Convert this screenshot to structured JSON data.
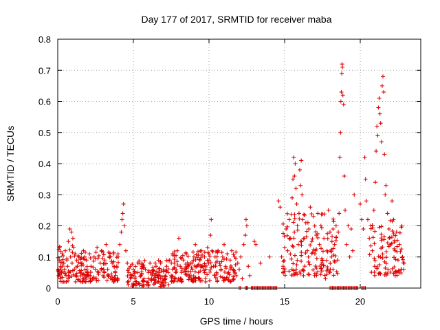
{
  "chart_data": {
    "type": "scatter",
    "title": "Day 177 of 2017, SRMTID for receiver maba",
    "xlabel": "GPS time / hours",
    "ylabel": "SRMTID / TECUs",
    "xlim": [
      0,
      24
    ],
    "ylim": [
      0,
      0.8
    ],
    "xticks": [
      "0",
      "5",
      "10",
      "15",
      "20"
    ],
    "yticks": [
      "0",
      "0.1",
      "0.2",
      "0.3",
      "0.4",
      "0.5",
      "0.6",
      "0.7",
      "0.8"
    ],
    "grid": true,
    "marker": "+",
    "color": "#e00000",
    "series": [
      {
        "points": [
          [
            0.0,
            0.06
          ],
          [
            0.05,
            0.04
          ],
          [
            0.1,
            0.09
          ],
          [
            0.15,
            0.03
          ],
          [
            0.2,
            0.07
          ],
          [
            0.25,
            0.05
          ],
          [
            0.3,
            0.11
          ],
          [
            0.35,
            0.02
          ],
          [
            0.4,
            0.08
          ],
          [
            0.45,
            0.06
          ],
          [
            0.5,
            0.12
          ],
          [
            0.55,
            0.04
          ],
          [
            0.6,
            0.09
          ],
          [
            0.65,
            0.07
          ],
          [
            0.7,
            0.15
          ],
          [
            0.75,
            0.05
          ],
          [
            0.8,
            0.19
          ],
          [
            0.85,
            0.1
          ],
          [
            0.9,
            0.18
          ],
          [
            0.95,
            0.08
          ],
          [
            1.0,
            0.16
          ],
          [
            1.05,
            0.13
          ],
          [
            1.1,
            0.06
          ],
          [
            1.15,
            0.11
          ],
          [
            1.2,
            0.04
          ],
          [
            1.25,
            0.09
          ],
          [
            1.3,
            0.07
          ],
          [
            1.4,
            0.1
          ],
          [
            1.5,
            0.05
          ],
          [
            1.6,
            0.08
          ],
          [
            1.7,
            0.12
          ],
          [
            1.8,
            0.06
          ],
          [
            1.9,
            0.09
          ],
          [
            2.0,
            0.04
          ],
          [
            2.1,
            0.11
          ],
          [
            2.2,
            0.07
          ],
          [
            2.3,
            0.03
          ],
          [
            2.4,
            0.1
          ],
          [
            2.5,
            0.06
          ],
          [
            2.6,
            0.13
          ],
          [
            2.7,
            0.05
          ],
          [
            2.8,
            0.08
          ],
          [
            2.9,
            0.12
          ],
          [
            3.0,
            0.04
          ],
          [
            3.1,
            0.09
          ],
          [
            3.2,
            0.14
          ],
          [
            3.3,
            0.06
          ],
          [
            3.4,
            0.1
          ],
          [
            3.5,
            0.03
          ],
          [
            3.6,
            0.08
          ],
          [
            3.7,
            0.11
          ],
          [
            3.8,
            0.05
          ],
          [
            3.9,
            0.07
          ],
          [
            4.0,
            0.1
          ],
          [
            4.1,
            0.14
          ],
          [
            4.2,
            0.18
          ],
          [
            4.25,
            0.22
          ],
          [
            4.3,
            0.24
          ],
          [
            4.35,
            0.27
          ],
          [
            4.4,
            0.2
          ],
          [
            4.5,
            0.12
          ],
          [
            4.6,
            0.08
          ],
          [
            4.7,
            0.05
          ],
          [
            4.8,
            0.07
          ],
          [
            4.9,
            0.04
          ],
          [
            5.0,
            0.06
          ],
          [
            5.1,
            0.03
          ],
          [
            5.2,
            0.02
          ],
          [
            5.3,
            0.05
          ],
          [
            5.4,
            0.01
          ],
          [
            5.5,
            0.04
          ],
          [
            5.6,
            0.07
          ],
          [
            5.7,
            0.03
          ],
          [
            5.8,
            0.06
          ],
          [
            5.9,
            0.02
          ],
          [
            6.0,
            0.05
          ],
          [
            6.1,
            0.08
          ],
          [
            6.2,
            0.03
          ],
          [
            6.3,
            0.06
          ],
          [
            6.4,
            0.04
          ],
          [
            6.5,
            0.07
          ],
          [
            6.6,
            0.02
          ],
          [
            6.7,
            0.05
          ],
          [
            6.8,
            0.08
          ],
          [
            6.9,
            0.03
          ],
          [
            7.0,
            0.06
          ],
          [
            7.1,
            0.04
          ],
          [
            7.2,
            0.07
          ],
          [
            7.3,
            0.05
          ],
          [
            7.4,
            0.09
          ],
          [
            7.5,
            0.04
          ],
          [
            7.6,
            0.06
          ],
          [
            7.7,
            0.08
          ],
          [
            7.8,
            0.05
          ],
          [
            7.9,
            0.12
          ],
          [
            8.0,
            0.16
          ],
          [
            8.1,
            0.07
          ],
          [
            8.2,
            0.05
          ],
          [
            8.3,
            0.09
          ],
          [
            8.4,
            0.06
          ],
          [
            8.5,
            0.11
          ],
          [
            8.6,
            0.07
          ],
          [
            8.7,
            0.04
          ],
          [
            8.8,
            0.08
          ],
          [
            8.9,
            0.06
          ],
          [
            9.0,
            0.1
          ],
          [
            9.1,
            0.14
          ],
          [
            9.2,
            0.07
          ],
          [
            9.3,
            0.05
          ],
          [
            9.4,
            0.09
          ],
          [
            9.5,
            0.12
          ],
          [
            9.6,
            0.07
          ],
          [
            9.7,
            0.1
          ],
          [
            9.8,
            0.06
          ],
          [
            9.9,
            0.13
          ],
          [
            10.0,
            0.09
          ],
          [
            10.1,
            0.17
          ],
          [
            10.15,
            0.22
          ],
          [
            10.2,
            0.12
          ],
          [
            10.3,
            0.07
          ],
          [
            10.4,
            0.1
          ],
          [
            10.5,
            0.05
          ],
          [
            10.6,
            0.12
          ],
          [
            10.7,
            0.08
          ],
          [
            10.8,
            0.06
          ],
          [
            10.9,
            0.1
          ],
          [
            11.0,
            0.14
          ],
          [
            11.1,
            0.07
          ],
          [
            11.2,
            0.11
          ],
          [
            11.3,
            0.05
          ],
          [
            11.4,
            0.09
          ],
          [
            11.5,
            0.12
          ],
          [
            11.6,
            0.06
          ],
          [
            11.7,
            0.1
          ],
          [
            11.8,
            0.04
          ],
          [
            11.9,
            0.08
          ],
          [
            12.0,
            0.06
          ],
          [
            12.1,
            0.1
          ],
          [
            12.2,
            0.03
          ],
          [
            12.3,
            0.14
          ],
          [
            12.4,
            0.17
          ],
          [
            12.45,
            0.22
          ],
          [
            12.5,
            0.2
          ],
          [
            12.6,
            0.07
          ],
          [
            12.7,
            0.04
          ],
          [
            13.0,
            0.15
          ],
          [
            13.1,
            0.14
          ],
          [
            13.4,
            0.08
          ],
          [
            14.0,
            0.1
          ],
          [
            14.6,
            0.28
          ],
          [
            14.7,
            0.26
          ],
          [
            14.8,
            0.1
          ],
          [
            14.9,
            0.07
          ],
          [
            15.0,
            0.13
          ],
          [
            15.1,
            0.19
          ],
          [
            15.2,
            0.12
          ],
          [
            15.3,
            0.22
          ],
          [
            15.4,
            0.16
          ],
          [
            15.5,
            0.29
          ],
          [
            15.55,
            0.35
          ],
          [
            15.6,
            0.42
          ],
          [
            15.65,
            0.36
          ],
          [
            15.7,
            0.4
          ],
          [
            15.75,
            0.32
          ],
          [
            15.8,
            0.27
          ],
          [
            15.85,
            0.2
          ],
          [
            15.9,
            0.14
          ],
          [
            15.95,
            0.24
          ],
          [
            16.0,
            0.38
          ],
          [
            16.05,
            0.33
          ],
          [
            16.1,
            0.41
          ],
          [
            16.15,
            0.3
          ],
          [
            16.2,
            0.22
          ],
          [
            16.3,
            0.16
          ],
          [
            16.4,
            0.21
          ],
          [
            16.5,
            0.12
          ],
          [
            16.6,
            0.19
          ],
          [
            16.7,
            0.26
          ],
          [
            16.8,
            0.15
          ],
          [
            16.9,
            0.23
          ],
          [
            17.0,
            0.11
          ],
          [
            17.1,
            0.17
          ],
          [
            17.2,
            0.24
          ],
          [
            17.3,
            0.14
          ],
          [
            17.4,
            0.2
          ],
          [
            17.5,
            0.09
          ],
          [
            17.6,
            0.16
          ],
          [
            17.7,
            0.03
          ],
          [
            17.8,
            0.12
          ],
          [
            17.9,
            0.25
          ],
          [
            18.0,
            0.18
          ],
          [
            18.1,
            0.1
          ],
          [
            18.2,
            0.06
          ],
          [
            18.3,
            0.14
          ],
          [
            18.4,
            0.2
          ],
          [
            18.5,
            0.09
          ],
          [
            18.55,
            0.18
          ],
          [
            18.6,
            0.24
          ],
          [
            18.65,
            0.42
          ],
          [
            18.7,
            0.5
          ],
          [
            18.72,
            0.6
          ],
          [
            18.75,
            0.63
          ],
          [
            18.78,
            0.69
          ],
          [
            18.8,
            0.72
          ],
          [
            18.82,
            0.71
          ],
          [
            18.85,
            0.62
          ],
          [
            18.9,
            0.59
          ],
          [
            18.95,
            0.36
          ],
          [
            19.0,
            0.25
          ],
          [
            19.1,
            0.14
          ],
          [
            19.2,
            0.2
          ],
          [
            19.3,
            0.1
          ],
          [
            19.4,
            0.19
          ],
          [
            19.5,
            0.12
          ],
          [
            19.6,
            0.3
          ],
          [
            20.0,
            0.27
          ],
          [
            20.1,
            0.22
          ],
          [
            20.2,
            0.19
          ],
          [
            20.3,
            0.42
          ],
          [
            20.35,
            0.35
          ],
          [
            20.4,
            0.28
          ],
          [
            20.5,
            0.22
          ],
          [
            20.6,
            0.16
          ],
          [
            20.7,
            0.2
          ],
          [
            20.8,
            0.12
          ],
          [
            20.9,
            0.25
          ],
          [
            21.0,
            0.34
          ],
          [
            21.05,
            0.44
          ],
          [
            21.1,
            0.52
          ],
          [
            21.15,
            0.49
          ],
          [
            21.2,
            0.58
          ],
          [
            21.25,
            0.61
          ],
          [
            21.3,
            0.56
          ],
          [
            21.35,
            0.53
          ],
          [
            21.4,
            0.47
          ],
          [
            21.45,
            0.65
          ],
          [
            21.5,
            0.68
          ],
          [
            21.55,
            0.63
          ],
          [
            21.6,
            0.43
          ],
          [
            21.65,
            0.3
          ],
          [
            21.7,
            0.33
          ],
          [
            21.8,
            0.24
          ],
          [
            21.9,
            0.19
          ],
          [
            22.0,
            0.14
          ],
          [
            22.1,
            0.28
          ],
          [
            22.2,
            0.22
          ],
          [
            22.3,
            0.12
          ],
          [
            22.4,
            0.18
          ],
          [
            22.5,
            0.09
          ],
          [
            22.6,
            0.14
          ],
          [
            22.7,
            0.06
          ],
          [
            22.8,
            0.1
          ],
          [
            22.9,
            0.08
          ]
        ]
      }
    ],
    "scatter_bands": [
      [
        0.0,
        1.0,
        0.02,
        0.14
      ],
      [
        1.0,
        4.0,
        0.02,
        0.12
      ],
      [
        4.6,
        7.6,
        0.005,
        0.09
      ],
      [
        7.6,
        11.8,
        0.02,
        0.12
      ],
      [
        14.9,
        18.5,
        0.04,
        0.24
      ],
      [
        20.6,
        22.9,
        0.04,
        0.22
      ]
    ],
    "zero_runs": [
      [
        12.0,
        12.1
      ],
      [
        12.4,
        12.6
      ],
      [
        12.8,
        14.5
      ],
      [
        18.0,
        19.9
      ],
      [
        20.1,
        20.4
      ]
    ]
  }
}
